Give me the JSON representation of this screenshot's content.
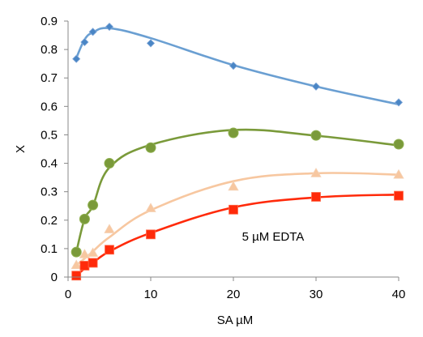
{
  "chart_data": {
    "type": "scatter",
    "xlabel": "SA µM",
    "ylabel": "X",
    "xlim": [
      0,
      40
    ],
    "ylim": [
      0,
      0.9
    ],
    "xticks": [
      "0",
      "10",
      "20",
      "30",
      "40"
    ],
    "yticks": [
      "0",
      "0.1",
      "0.2",
      "0.3",
      "0.4",
      "0.5",
      "0.6",
      "0.7",
      "0.8",
      "0.9"
    ],
    "grid": false,
    "annotation": "5 µM EDTA",
    "series": [
      {
        "color": "#4a86c5",
        "line_color": "#6a9fd2",
        "marker": "diamond",
        "points": [
          [
            1,
            0.767
          ],
          [
            2,
            0.826
          ],
          [
            3,
            0.862
          ],
          [
            5,
            0.88
          ],
          [
            10,
            0.822
          ],
          [
            20,
            0.743
          ],
          [
            30,
            0.67
          ],
          [
            40,
            0.614
          ]
        ],
        "fit": [
          [
            1,
            0.77
          ],
          [
            2,
            0.835
          ],
          [
            3,
            0.86
          ],
          [
            5,
            0.875
          ],
          [
            10,
            0.84
          ],
          [
            20,
            0.745
          ],
          [
            30,
            0.67
          ],
          [
            40,
            0.607
          ]
        ]
      },
      {
        "color": "#7a9a3a",
        "line_color": "#7a9a3a",
        "marker": "circle",
        "points": [
          [
            1,
            0.088
          ],
          [
            2,
            0.204
          ],
          [
            3,
            0.253
          ],
          [
            5,
            0.4
          ],
          [
            10,
            0.455
          ],
          [
            20,
            0.507
          ],
          [
            30,
            0.498
          ],
          [
            40,
            0.467
          ]
        ],
        "fit": [
          [
            1,
            0.088
          ],
          [
            2,
            0.204
          ],
          [
            3,
            0.25
          ],
          [
            5,
            0.385
          ],
          [
            10,
            0.465
          ],
          [
            20,
            0.517
          ],
          [
            30,
            0.497
          ],
          [
            40,
            0.463
          ]
        ]
      },
      {
        "color": "#f7c7a0",
        "line_color": "#f7c7a0",
        "marker": "triangle",
        "points": [
          [
            1,
            0.042
          ],
          [
            2,
            0.08
          ],
          [
            3,
            0.085
          ],
          [
            5,
            0.168
          ],
          [
            10,
            0.242
          ],
          [
            20,
            0.318
          ],
          [
            30,
            0.365
          ],
          [
            40,
            0.36
          ]
        ],
        "fit": [
          [
            1,
            0.042
          ],
          [
            2,
            0.065
          ],
          [
            3,
            0.09
          ],
          [
            5,
            0.14
          ],
          [
            10,
            0.235
          ],
          [
            20,
            0.337
          ],
          [
            30,
            0.365
          ],
          [
            40,
            0.36
          ]
        ]
      },
      {
        "color": "#ff2a0a",
        "line_color": "#ff2a0a",
        "marker": "square",
        "points": [
          [
            1,
            0.005
          ],
          [
            2,
            0.04
          ],
          [
            3,
            0.05
          ],
          [
            5,
            0.096
          ],
          [
            10,
            0.15
          ],
          [
            20,
            0.237
          ],
          [
            30,
            0.282
          ],
          [
            40,
            0.286
          ]
        ],
        "fit": [
          [
            1,
            0.005
          ],
          [
            2,
            0.03
          ],
          [
            3,
            0.05
          ],
          [
            5,
            0.09
          ],
          [
            10,
            0.155
          ],
          [
            20,
            0.245
          ],
          [
            30,
            0.28
          ],
          [
            40,
            0.29
          ]
        ]
      }
    ]
  }
}
